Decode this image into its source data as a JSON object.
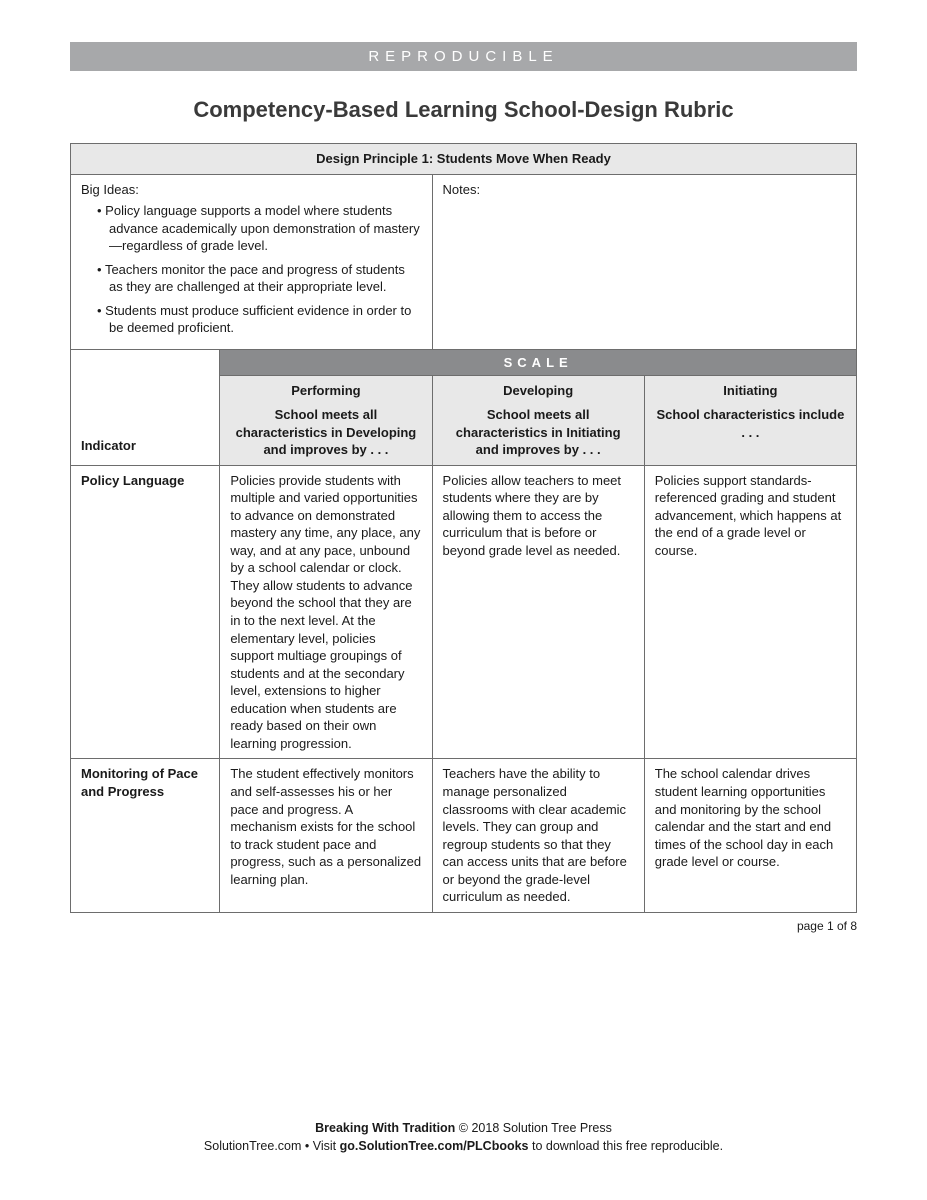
{
  "header_bar": "REPRODUCIBLE",
  "page_title": "Competency-Based Learning School-Design Rubric",
  "principle_heading": "Design Principle 1: Students Move When Ready",
  "big_ideas_label": "Big Ideas:",
  "notes_label": "Notes:",
  "big_ideas": [
    "Policy language supports a model where students advance academically upon demonstration of mastery—regardless of grade level.",
    "Teachers monitor the pace and progress of students as they are challenged at their appropriate level.",
    "Students must produce sufficient evidence in order to be deemed proficient."
  ],
  "scale_label": "SCALE",
  "indicator_label": "Indicator",
  "columns": [
    {
      "title": "Performing",
      "desc": "School meets all characteristics in Developing and improves by . . ."
    },
    {
      "title": "Developing",
      "desc": "School meets all characteristics in Initiating and improves by . . ."
    },
    {
      "title": "Initiating",
      "desc": "School characteristics include . . ."
    }
  ],
  "rows": [
    {
      "indicator": "Policy Language",
      "performing": "Policies provide students with multiple and varied opportunities to advance on demonstrated mastery any time, any place, any way, and at any pace, unbound by a school calendar or clock. They allow students to advance beyond the school that they are in to the next level. At the elementary level, policies support multiage groupings of students and at the secondary level, extensions to higher education when students are ready based on their own learning progression.",
      "developing": "Policies allow teachers to meet students where they are by allowing them to access the curriculum that is before or beyond grade level as needed.",
      "initiating": "Policies support standards-referenced grading and student advancement, which happens at the end of a grade level or course."
    },
    {
      "indicator": "Monitoring of Pace and Progress",
      "performing": "The student effectively monitors and self-assesses his or her pace and progress. A mechanism exists for the school to track student pace and progress, such as a personalized learning plan.",
      "developing": "Teachers have the ability to manage personalized classrooms with clear academic levels. They can group and regroup students so that they can access units that are before or beyond the grade-level curriculum as needed.",
      "initiating": "The school calendar drives student learning opportunities and monitoring by the school calendar and the start and end times of the school day in each grade level or course."
    }
  ],
  "page_marker": "page 1 of 8",
  "footer": {
    "book": "Breaking With Tradition",
    "copyright": " © 2018 Solution Tree Press",
    "site": "SolutionTree.com",
    "separator": " • ",
    "visit_prefix": "Visit ",
    "url": "go.SolutionTree.com/PLCbooks",
    "visit_suffix": " to download this free reproducible."
  },
  "colors": {
    "header_bar_bg": "#a7a8aa",
    "header_bar_fg": "#ffffff",
    "light_cell_bg": "#e8e8e8",
    "scale_bg": "#8a8b8d",
    "border": "#6d6d6d",
    "text": "#1a1a1a"
  }
}
